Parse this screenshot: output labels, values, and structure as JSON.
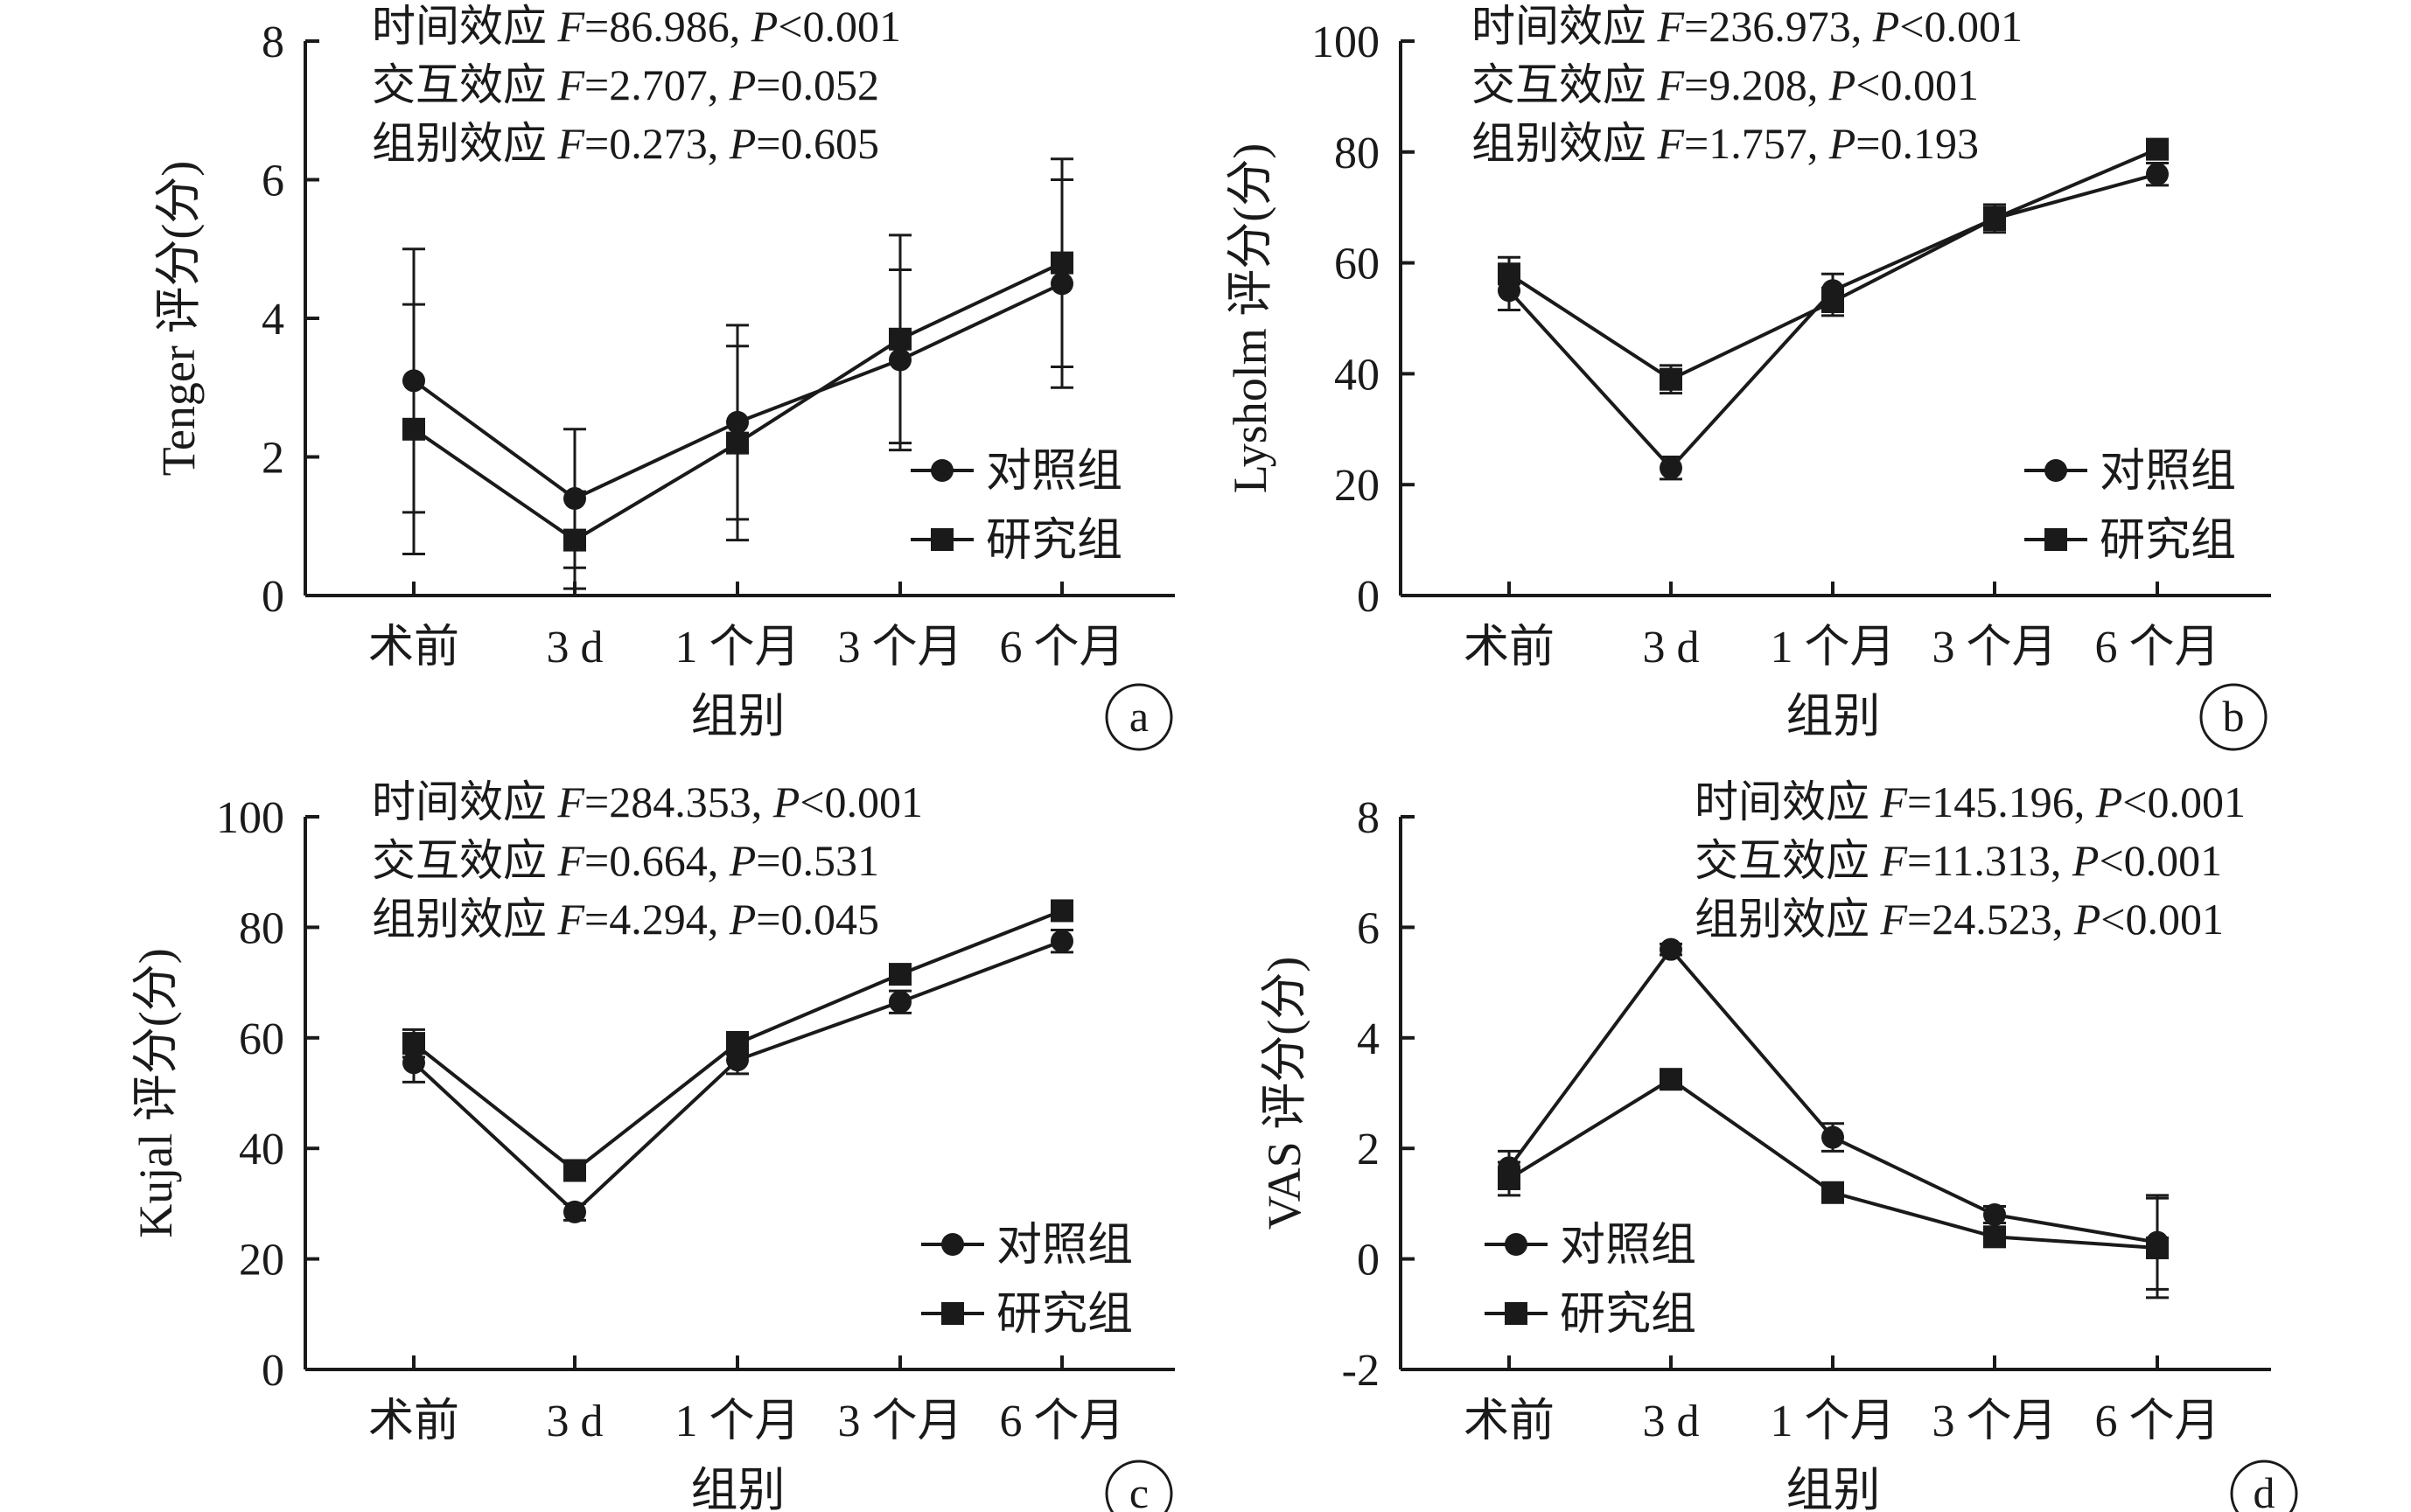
{
  "x_title": "组别",
  "categories": [
    "术前",
    "3 d",
    "1 个月",
    "3 个月",
    "6 个月"
  ],
  "legend": {
    "control": "对照组",
    "study": "研究组"
  },
  "chart_data": [
    {
      "id": "a",
      "type": "line",
      "panel_label": "a",
      "ylabel": "Tenger 评分(分)",
      "ylim": [
        0,
        8
      ],
      "yticks": [
        0,
        2,
        4,
        6,
        8
      ],
      "grid": false,
      "legend_position": "bottom-right",
      "categories": [
        "术前",
        "3 d",
        "1 个月",
        "3 个月",
        "6 个月"
      ],
      "stats": [
        {
          "label": "时间效应",
          "f_value": "86.986",
          "p_value": "<0.001"
        },
        {
          "label": "交互效应",
          "f_value": "2.707",
          "p_value": "=0.052"
        },
        {
          "label": "组别效应",
          "f_value": "0.273",
          "p_value": "=0.605"
        }
      ],
      "series": [
        {
          "name": "对照组",
          "marker": "circle",
          "values": [
            3.1,
            1.4,
            2.5,
            3.4,
            4.5
          ],
          "errors": [
            1.9,
            1.0,
            1.4,
            1.3,
            1.5
          ]
        },
        {
          "name": "研究组",
          "marker": "square",
          "values": [
            2.4,
            0.8,
            2.2,
            3.7,
            4.8
          ],
          "errors": [
            1.8,
            0.7,
            1.4,
            1.5,
            1.5
          ]
        }
      ]
    },
    {
      "id": "b",
      "type": "line",
      "panel_label": "b",
      "ylabel": "Lysholm 评分(分)",
      "ylim": [
        0,
        100
      ],
      "yticks": [
        0,
        20,
        40,
        60,
        80,
        100
      ],
      "grid": false,
      "legend_position": "bottom-right",
      "categories": [
        "术前",
        "3 d",
        "1 个月",
        "3 个月",
        "6 个月"
      ],
      "stats": [
        {
          "label": "时间效应",
          "f_value": "236.973",
          "p_value": "<0.001"
        },
        {
          "label": "交互效应",
          "f_value": "9.208",
          "p_value": "<0.001"
        },
        {
          "label": "组别效应",
          "f_value": "1.757",
          "p_value": "=0.193"
        }
      ],
      "series": [
        {
          "name": "对照组",
          "marker": "circle",
          "values": [
            55,
            23,
            55,
            68,
            76
          ],
          "errors": [
            3.5,
            2.0,
            3.0,
            2.0,
            2.0
          ]
        },
        {
          "name": "研究组",
          "marker": "square",
          "values": [
            58,
            39,
            53,
            68,
            80.5
          ],
          "errors": [
            3.0,
            2.5,
            2.5,
            2.5,
            1.5
          ]
        }
      ]
    },
    {
      "id": "c",
      "type": "line",
      "panel_label": "c",
      "ylabel": "Kujal 评分(分)",
      "ylim": [
        0,
        100
      ],
      "yticks": [
        0,
        20,
        40,
        60,
        80,
        100
      ],
      "grid": false,
      "legend_position": "bottom-right",
      "categories": [
        "术前",
        "3 d",
        "1 个月",
        "3 个月",
        "6 个月"
      ],
      "stats": [
        {
          "label": "时间效应",
          "f_value": "284.353",
          "p_value": "<0.001"
        },
        {
          "label": "交互效应",
          "f_value": "0.664",
          "p_value": "=0.531"
        },
        {
          "label": "组别效应",
          "f_value": "4.294",
          "p_value": "=0.045"
        }
      ],
      "series": [
        {
          "name": "对照组",
          "marker": "circle",
          "values": [
            55.5,
            28.5,
            56,
            66.5,
            77.5
          ],
          "errors": [
            3.5,
            1.5,
            2.5,
            2.0,
            2.0
          ]
        },
        {
          "name": "研究组",
          "marker": "square",
          "values": [
            59,
            36,
            59,
            71.5,
            83
          ],
          "errors": [
            2.5,
            1.5,
            2.0,
            1.5,
            1.5
          ]
        }
      ]
    },
    {
      "id": "d",
      "type": "line",
      "panel_label": "d",
      "ylabel": "VAS 评分(分)",
      "ylim": [
        -2,
        8
      ],
      "yticks": [
        -2,
        0,
        2,
        4,
        6,
        8
      ],
      "grid": false,
      "legend_position": "bottom-left",
      "categories": [
        "术前",
        "3 d",
        "1 个月",
        "3 个月",
        "6 个月"
      ],
      "stats": [
        {
          "label": "时间效应",
          "f_value": "145.196",
          "p_value": "<0.001"
        },
        {
          "label": "交互效应",
          "f_value": "11.313",
          "p_value": "<0.001"
        },
        {
          "label": "组别效应",
          "f_value": "24.523",
          "p_value": "<0.001"
        }
      ],
      "series": [
        {
          "name": "对照组",
          "marker": "circle",
          "values": [
            1.65,
            5.6,
            2.2,
            0.8,
            0.3
          ],
          "errors": [
            0.3,
            0.1,
            0.25,
            0.15,
            0.85
          ]
        },
        {
          "name": "研究组",
          "marker": "square",
          "values": [
            1.45,
            3.25,
            1.2,
            0.4,
            0.2
          ],
          "errors": [
            0.3,
            0.1,
            0.1,
            0.1,
            0.9
          ]
        }
      ]
    }
  ]
}
